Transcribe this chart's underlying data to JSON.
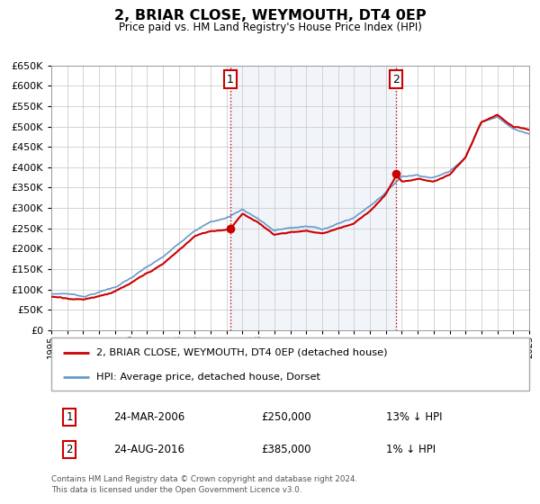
{
  "title": "2, BRIAR CLOSE, WEYMOUTH, DT4 0EP",
  "subtitle": "Price paid vs. HM Land Registry's House Price Index (HPI)",
  "background_color": "#ffffff",
  "plot_bg_color": "#ffffff",
  "grid_color": "#cccccc",
  "xmin": 1995.0,
  "xmax": 2025.0,
  "ymin": 0,
  "ymax": 650000,
  "yticks": [
    0,
    50000,
    100000,
    150000,
    200000,
    250000,
    300000,
    350000,
    400000,
    450000,
    500000,
    550000,
    600000,
    650000
  ],
  "red_line_color": "#cc0000",
  "blue_line_color": "#6699cc",
  "sale1_x": 2006.23,
  "sale1_y": 250000,
  "sale2_x": 2016.65,
  "sale2_y": 385000,
  "vline_color": "#cc0000",
  "marker_color": "#cc0000",
  "shade_color": "#c8d8ee",
  "legend_line1": "2, BRIAR CLOSE, WEYMOUTH, DT4 0EP (detached house)",
  "legend_line2": "HPI: Average price, detached house, Dorset",
  "table_row1_num": "1",
  "table_row1_date": "24-MAR-2006",
  "table_row1_price": "£250,000",
  "table_row1_hpi": "13% ↓ HPI",
  "table_row2_num": "2",
  "table_row2_date": "24-AUG-2016",
  "table_row2_price": "£385,000",
  "table_row2_hpi": "1% ↓ HPI",
  "footnote1": "Contains HM Land Registry data © Crown copyright and database right 2024.",
  "footnote2": "This data is licensed under the Open Government Licence v3.0.",
  "hpi_knots": [
    1995,
    1996,
    1997,
    1998,
    1999,
    2000,
    2001,
    2002,
    2003,
    2004,
    2005,
    2006,
    2007,
    2008,
    2009,
    2010,
    2011,
    2012,
    2013,
    2014,
    2015,
    2016,
    2017,
    2018,
    2019,
    2020,
    2021,
    2022,
    2023,
    2024,
    2025
  ],
  "hpi_vals": [
    88000,
    90000,
    84000,
    95000,
    108000,
    130000,
    155000,
    178000,
    210000,
    248000,
    268000,
    278000,
    300000,
    278000,
    248000,
    255000,
    258000,
    252000,
    265000,
    280000,
    310000,
    345000,
    385000,
    390000,
    385000,
    400000,
    440000,
    525000,
    540000,
    510000,
    498000
  ],
  "red_knots": [
    1995,
    1996,
    1997,
    1998,
    1999,
    2000,
    2001,
    2002,
    2003,
    2004,
    2005,
    2006,
    2006.23,
    2007,
    2008,
    2009,
    2010,
    2011,
    2012,
    2013,
    2014,
    2015,
    2016,
    2016.65,
    2017,
    2018,
    2019,
    2020,
    2021,
    2022,
    2023,
    2024,
    2025
  ],
  "red_vals": [
    82000,
    80000,
    78000,
    88000,
    100000,
    118000,
    140000,
    162000,
    195000,
    230000,
    242000,
    248000,
    250000,
    290000,
    265000,
    238000,
    245000,
    248000,
    242000,
    255000,
    268000,
    300000,
    340000,
    385000,
    370000,
    378000,
    372000,
    388000,
    430000,
    515000,
    530000,
    500000,
    490000
  ]
}
